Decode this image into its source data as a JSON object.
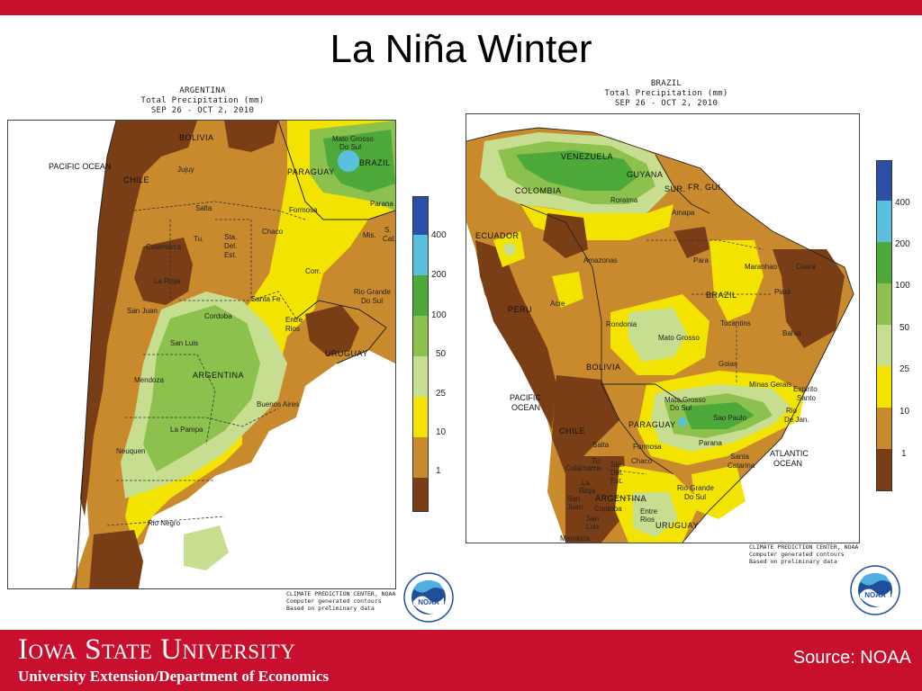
{
  "slide": {
    "title": "La Niña Winter"
  },
  "maps": {
    "argentina": {
      "header": [
        "ARGENTINA",
        "Total Precipitation (mm)",
        "SEP 26 - OCT  2, 2010"
      ],
      "labels": {
        "pacific_ocean": "PACIFIC\nOCEAN",
        "bolivia": "BOLIVIA",
        "chile": "CHILE",
        "paraguay": "PARAGUAY",
        "brazil": "BRAZIL",
        "uruguay": "URUGUAY",
        "argentina": "ARGENTINA",
        "jujuy": "Jujuy",
        "salta": "Salta",
        "formosa": "Formosa",
        "tu": "Tu.",
        "sta_del_est": "Sta.\nDel.\nEst.",
        "chaco": "Chaco",
        "catamarca": "Catamarca",
        "la_rioja": "La Rioja",
        "san_juan": "San Juan",
        "corr": "Corr.",
        "santa_fe": "Santa Fe",
        "cordoba": "Cordoba",
        "entre_rios": "Entre\nRios",
        "san_luis": "San Luis",
        "mendoza": "Mendoza",
        "buenos_aires": "Buenos Aires",
        "la_pampa": "La Pampa",
        "neuquen": "Neuquen",
        "rio_negro": "Rio Negro",
        "mato_grosso_do_sul": "Mato Grosso\nDo Sul",
        "parana": "Parana",
        "mis": "Mis.",
        "s_cat": "S.\nCat.",
        "rio_grande_do_sul": "Rio Grande\nDo Sul"
      },
      "credit": [
        "CLIMATE PREDICTION CENTER, NOAA",
        "Computer generated contours",
        "Based on preliminary data"
      ]
    },
    "brazil": {
      "header": [
        "BRAZIL",
        "Total Precipitation (mm)",
        "SEP 26 - OCT  2, 2010"
      ],
      "labels": {
        "venezuela": "VENEZUELA",
        "guyana": "GUYANA",
        "sur": "SUR.",
        "fr_gui": "FR. GUI.",
        "colombia": "COLOMBIA",
        "roraima": "Roraima",
        "amapa": "Amapa",
        "ecuador": "ECUADOR",
        "amazonas": "Amazonas",
        "para": "Para",
        "maranhao": "Maranhao",
        "ceara": "Ceara",
        "brazil": "BRAZIL",
        "piaui": "Piaui",
        "peru": "PERU",
        "acre": "Acre",
        "rondonia": "Rondonia",
        "tocantins": "Tocantins",
        "mato_grosso": "Mato Grosso",
        "bahia": "Bahia",
        "bolivia": "BOLIVIA",
        "goias": "Goias",
        "pacific_ocean": "PACIFIC\nOCEAN",
        "minas_gerais": "Minas Gerais",
        "espirito_santo": "Espirito\nSanto",
        "mato_grosso_do_sul": "Mato Grosso\nDo Sul",
        "rio_de_jan": "Rio\nDe Jan.",
        "sao_paulo": "Sao Paulo",
        "chile": "CHILE",
        "paraguay": "PARAGUAY",
        "atlantic_ocean": "ATLANTIC\nOCEAN",
        "salta": "Salta",
        "formosa": "Formosa",
        "parana": "Parana",
        "santa_catarina": "Santa\nCatarina",
        "chaco": "Chaco",
        "tu": "Tu.",
        "sta_del_est": "Sta.\nDel.\nEst.",
        "catamarca": "Catamarca",
        "la_rioja": "La\nRioja",
        "san_juan": "San\nJuan",
        "argentina": "ARGENTINA",
        "rio_grande_do_sul": "Rio Grande\nDo Sul",
        "cordoba": "Cordoba",
        "entre_rios": "Entre\nRios",
        "san_luis": "San\nLuis",
        "mendoza": "Mendoza",
        "uruguay": "URUGUAY"
      },
      "credit": [
        "CLIMATE PREDICTION CENTER, NOAA",
        "Computer generated contours",
        "Based on preliminary data"
      ]
    }
  },
  "legend": {
    "thresholds": [
      "400",
      "200",
      "100",
      "50",
      "25",
      "10",
      "1"
    ],
    "colors": [
      "#2b4fa8",
      "#5bc0de",
      "#4daa3a",
      "#8cc14d",
      "#c7dd8f",
      "#f2e400",
      "#c98a2e",
      "#7a3e17"
    ]
  },
  "noaa_logo_text": "NOAA",
  "footer": {
    "university": "Iowa State University",
    "department": "University Extension/Department of Economics",
    "source": "Source: NOAA"
  }
}
